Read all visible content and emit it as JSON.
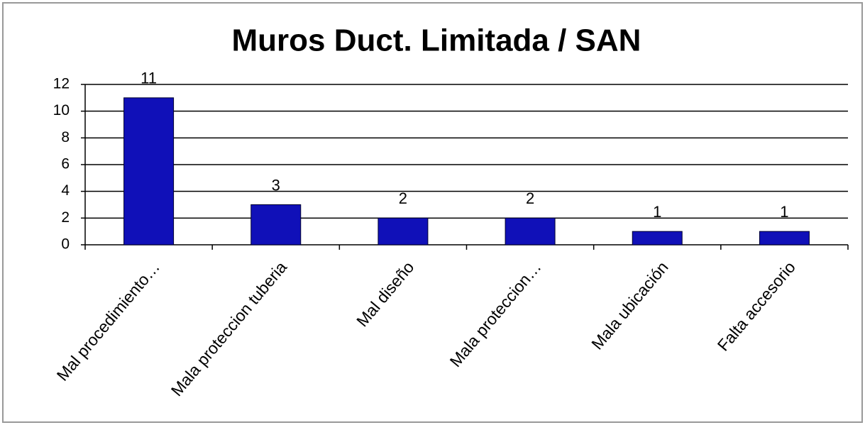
{
  "chart_data": {
    "type": "bar",
    "title": "Muros Duct. Limitada / SAN",
    "categories": [
      "Mal procedimiento…",
      "Mala proteccion tuberia",
      "Mal diseño",
      "Mala proteccion…",
      "Mala ubicación",
      "Falta accesorio"
    ],
    "values": [
      11,
      3,
      2,
      2,
      1,
      1
    ],
    "color": "#1010b8",
    "ylim": [
      0,
      12
    ],
    "yticks": [
      0,
      2,
      4,
      6,
      8,
      10,
      12
    ],
    "grid": true
  }
}
